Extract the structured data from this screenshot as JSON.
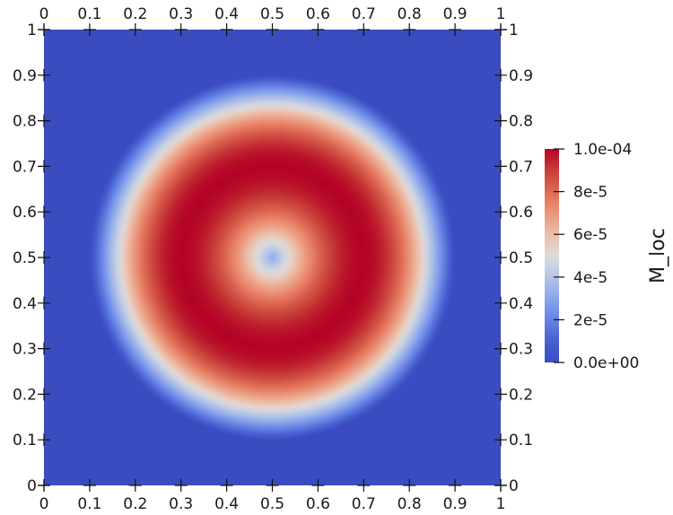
{
  "chart_data": {
    "type": "heatmap",
    "title": "",
    "field": "M_loc",
    "xlabel": "",
    "ylabel": "",
    "xlim": [
      0,
      1
    ],
    "ylim": [
      0,
      1
    ],
    "x_ticks": [
      0,
      0.1,
      0.2,
      0.3,
      0.4,
      0.5,
      0.6,
      0.7,
      0.8,
      0.9,
      1
    ],
    "y_ticks": [
      0,
      0.1,
      0.2,
      0.3,
      0.4,
      0.5,
      0.6,
      0.7,
      0.8,
      0.9,
      1
    ],
    "x_tick_labels": [
      "0",
      "0.1",
      "0.2",
      "0.3",
      "0.4",
      "0.5",
      "0.6",
      "0.7",
      "0.8",
      "0.9",
      "1"
    ],
    "y_tick_labels": [
      "0",
      "0.1",
      "0.2",
      "0.3",
      "0.4",
      "0.5",
      "0.6",
      "0.7",
      "0.8",
      "0.9",
      "1"
    ],
    "pattern": {
      "center": [
        0.5,
        0.5
      ],
      "peak_radius": 0.2,
      "outer_radius": 0.4,
      "center_value": 3.2e-05,
      "peak_value": 0.0001,
      "background_value": 0
    },
    "colorbar": {
      "title": "M_loc",
      "range": [
        0,
        0.0001
      ],
      "ticks": [
        0,
        2e-05,
        4e-05,
        6e-05,
        8e-05,
        0.0001
      ],
      "tick_labels": [
        "0.0e+00",
        "2e-5",
        "4e-5",
        "6e-5",
        "8e-5",
        "1.0e-04"
      ],
      "placement": "right",
      "colormap": "coolwarm",
      "colors": [
        "#3b4cc0",
        "#dddddd",
        "#b40426"
      ]
    }
  }
}
